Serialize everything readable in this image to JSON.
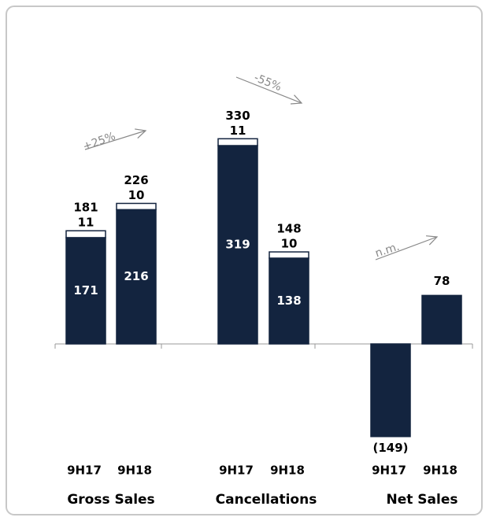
{
  "chart_data": {
    "type": "bar",
    "stacked": true,
    "groups": [
      "Gross Sales",
      "Cancellations",
      "Net Sales"
    ],
    "categories": [
      "9H17",
      "9H18",
      "9H17",
      "9H18",
      "9H17",
      "9H18"
    ],
    "series": [
      {
        "color": "#13243f",
        "values": [
          171,
          216,
          319,
          138,
          -149,
          78
        ],
        "value_labels": [
          "171",
          "216",
          "319",
          "138",
          "(149)",
          "78"
        ]
      },
      {
        "color": "#ffffff",
        "values": [
          11,
          10,
          11,
          10,
          null,
          null
        ]
      }
    ],
    "totals": [
      181,
      226,
      330,
      148,
      null,
      null
    ],
    "annotations": [
      "+25%",
      "-55%",
      "n.m."
    ],
    "ylim": [
      -200,
      450
    ]
  }
}
